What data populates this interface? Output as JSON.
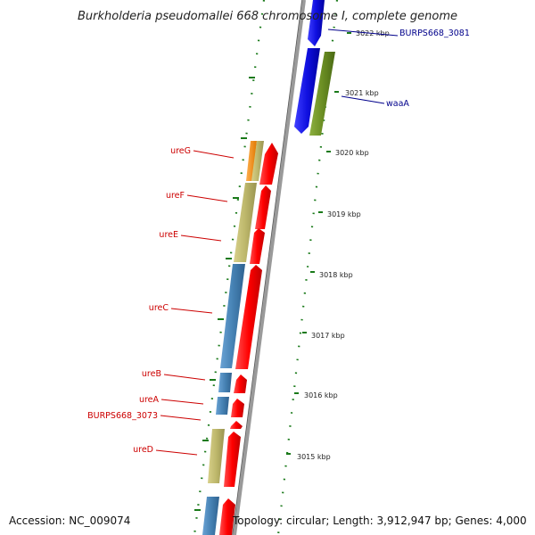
{
  "title": "Burkholderia pseudomallei 668 chromosome I, complete genome",
  "footer": {
    "accession": "Accession: NC_009074",
    "topology": "Topology: circular; Length: 3,912,947 bp; Genes: 4,000"
  },
  "scale_ticks": [
    "3022 kbp",
    "3021 kbp",
    "3020 kbp",
    "3019 kbp",
    "3018 kbp",
    "3017 kbp",
    "3016 kbp",
    "3015 kbp"
  ],
  "gene_labels_left": [
    "ureG",
    "ureF",
    "ureE",
    "ureC",
    "ureB",
    "ureA",
    "BURPS668_3073",
    "ureD"
  ],
  "gene_labels_right": [
    "BURPS668_3081",
    "waaA"
  ],
  "colors": {
    "forward_gene": "#ff0000",
    "reverse_gene": "#1010e0",
    "tan_block": "#bdb76b",
    "steel_block": "#4682b4",
    "orange_block": "#ff8c00",
    "olive_block": "#6b8e23",
    "tick_green": "#1a7a1a",
    "backbone": "#888888",
    "label_red": "#cc0000",
    "label_blue": "#00008b"
  }
}
